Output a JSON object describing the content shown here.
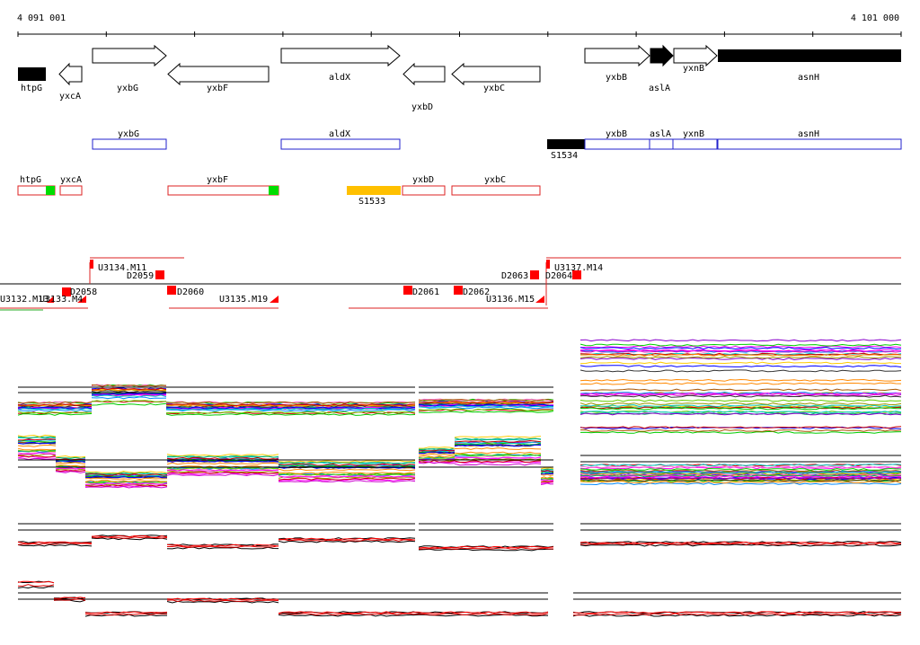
{
  "ruler": {
    "start_label": "4 091 001",
    "end_label": "4 101 000",
    "start": 4091001,
    "end": 4101000
  },
  "gene_track": {
    "genes": [
      {
        "name": "htpG",
        "fill": "#000000"
      },
      {
        "name": "yxcA",
        "fill": "#ffffff"
      },
      {
        "name": "yxbG",
        "fill": "#ffffff"
      },
      {
        "name": "yxbF",
        "fill": "#ffffff"
      },
      {
        "name": "aldX",
        "fill": "#ffffff"
      },
      {
        "name": "yxbD",
        "fill": "#ffffff"
      },
      {
        "name": "yxbC",
        "fill": "#ffffff"
      },
      {
        "name": "yxbB",
        "fill": "#ffffff"
      },
      {
        "name": "aslA",
        "fill": "#000000"
      },
      {
        "name": "yxnB",
        "fill": "#ffffff"
      },
      {
        "name": "asnH",
        "fill": "#000000"
      }
    ]
  },
  "forward_units": [
    {
      "name": "yxbG"
    },
    {
      "name": "aldX"
    },
    {
      "name": "S1534"
    },
    {
      "name": "yxbB"
    },
    {
      "name": "aslA"
    },
    {
      "name": "yxnB"
    },
    {
      "name": "asnH"
    }
  ],
  "reverse_units": [
    {
      "name": "htpG"
    },
    {
      "name": "yxcA"
    },
    {
      "name": "yxbF"
    },
    {
      "name": "S1533"
    },
    {
      "name": "yxbD"
    },
    {
      "name": "yxbC"
    }
  ],
  "segment_labels": [
    {
      "name": "U3134.M11"
    },
    {
      "name": "D2059"
    },
    {
      "name": "D2058"
    },
    {
      "name": "U3132.M13"
    },
    {
      "name": "U3133.M4"
    },
    {
      "name": "D2060"
    },
    {
      "name": "U3135.M19"
    },
    {
      "name": "D2061"
    },
    {
      "name": "D2062"
    },
    {
      "name": "U3136.M15"
    },
    {
      "name": "D2063"
    },
    {
      "name": "D2064"
    },
    {
      "name": "U3137.M14"
    }
  ],
  "colors": {
    "forward": "#2222cc",
    "reverse": "#dd2222",
    "marker": "#ff0000",
    "green_box": "#00dd00",
    "orange_box": "#ffc000",
    "black": "#000000"
  }
}
